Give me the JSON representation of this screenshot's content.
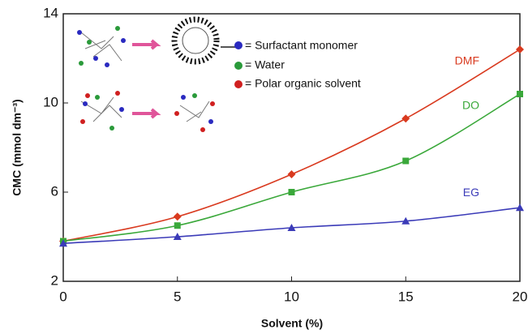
{
  "chart_data": {
    "type": "line",
    "x_label": "Solvent (%)",
    "y_label": "CMC (mmol dm⁻³)",
    "x": [
      0,
      5,
      10,
      15,
      20
    ],
    "series": [
      {
        "name": "DMF",
        "color": "#d93a1f",
        "marker": "diamond",
        "values": [
          3.8,
          4.9,
          6.8,
          9.3,
          12.4
        ]
      },
      {
        "name": "DO",
        "color": "#3aa83a",
        "marker": "square",
        "values": [
          3.8,
          4.5,
          6.0,
          7.4,
          10.4
        ]
      },
      {
        "name": "EG",
        "color": "#3b3bb8",
        "marker": "triangle",
        "values": [
          3.7,
          4.0,
          4.4,
          4.7,
          5.3
        ]
      }
    ],
    "xlim": [
      0,
      20
    ],
    "xticks": [
      0,
      5,
      10,
      15,
      20
    ],
    "ylim": [
      2,
      14
    ],
    "yticks": [
      2,
      6,
      10,
      14
    ],
    "annotations": [
      "= Surfactant monomer",
      "= Water",
      "= Polar organic solvent"
    ]
  }
}
